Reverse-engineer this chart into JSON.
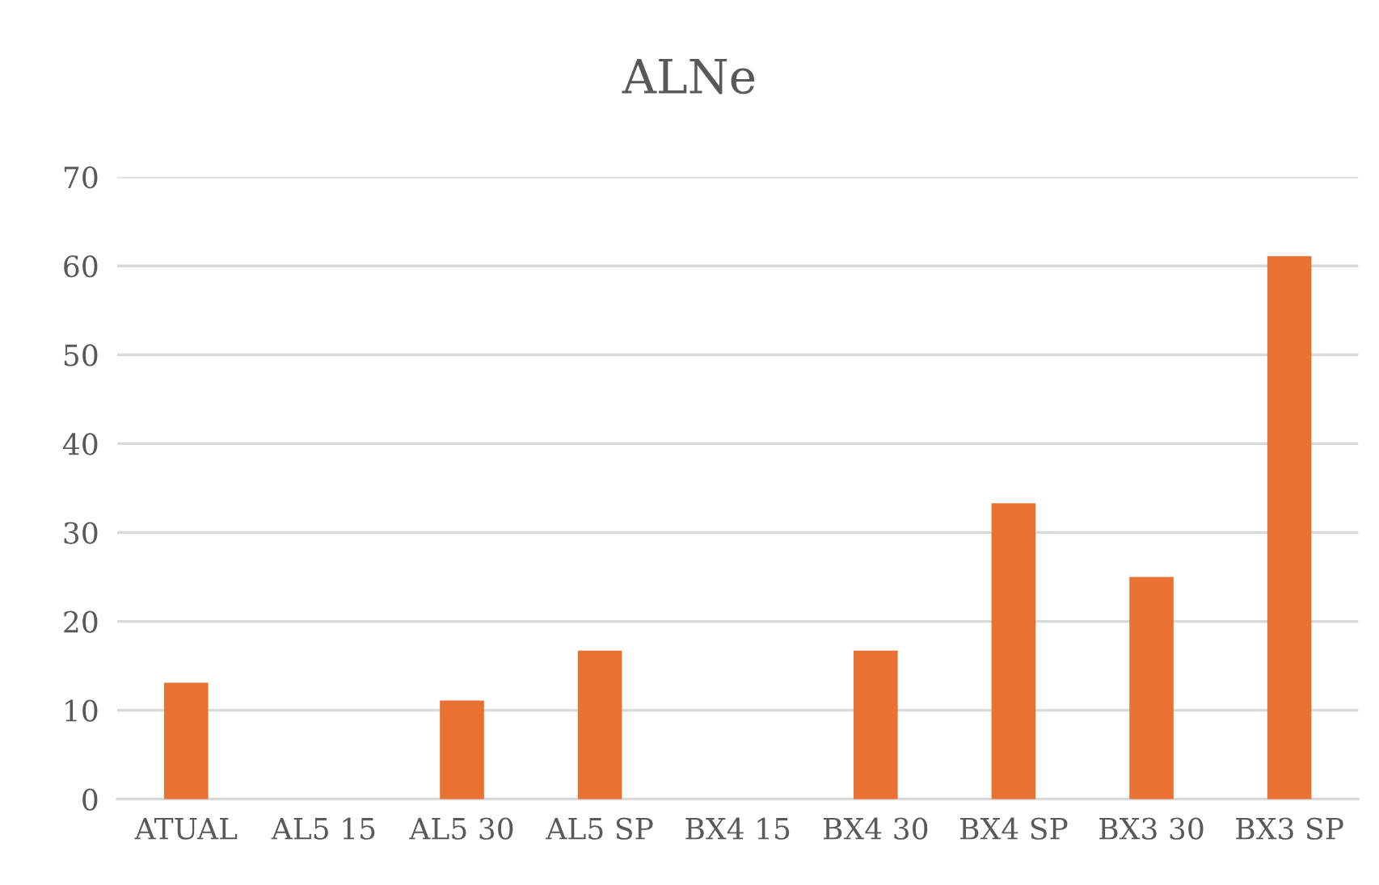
{
  "chart_data": {
    "type": "bar",
    "title": "ALNe",
    "categories": [
      "ATUAL",
      "AL5 15",
      "AL5 30",
      "AL5 SP",
      "BX4 15",
      "BX4 30",
      "BX4 SP",
      "BX3 30",
      "BX3 SP"
    ],
    "values": [
      13.1,
      0,
      11.1,
      16.7,
      0,
      16.7,
      33.3,
      25,
      61.1
    ],
    "color": "#e97132",
    "ylim": [
      0,
      70
    ],
    "yticks": [
      0,
      10,
      20,
      30,
      40,
      50,
      60,
      70
    ],
    "grid": "y"
  }
}
